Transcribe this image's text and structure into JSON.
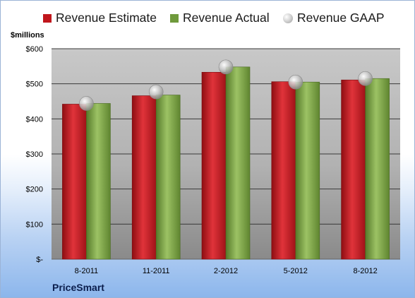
{
  "chart_data": {
    "type": "bar",
    "categories": [
      "8-2011",
      "11-2011",
      "2-2012",
      "5-2012",
      "8-2012"
    ],
    "series": [
      {
        "name": "Revenue Estimate",
        "kind": "bar",
        "color": "#c0161c",
        "values": [
          442,
          466,
          533,
          506,
          511
        ]
      },
      {
        "name": "Revenue Actual",
        "kind": "bar",
        "color": "#6f9a3c",
        "values": [
          444,
          468,
          548,
          505,
          515
        ]
      },
      {
        "name": "Revenue GAAP",
        "kind": "bubble",
        "color": "#b5b5b5",
        "values": [
          444,
          477,
          548,
          505,
          515
        ]
      }
    ],
    "title": "",
    "xlabel": "",
    "ylabel": "$millions",
    "ylim": [
      0,
      600
    ],
    "yticks": [
      0,
      100,
      200,
      300,
      400,
      500,
      600
    ],
    "ytick_labels": [
      "$-",
      "$100",
      "$200",
      "$300",
      "$400",
      "$500",
      "$600"
    ],
    "grid": true,
    "legend_position": "top"
  },
  "company": "PriceSmart"
}
